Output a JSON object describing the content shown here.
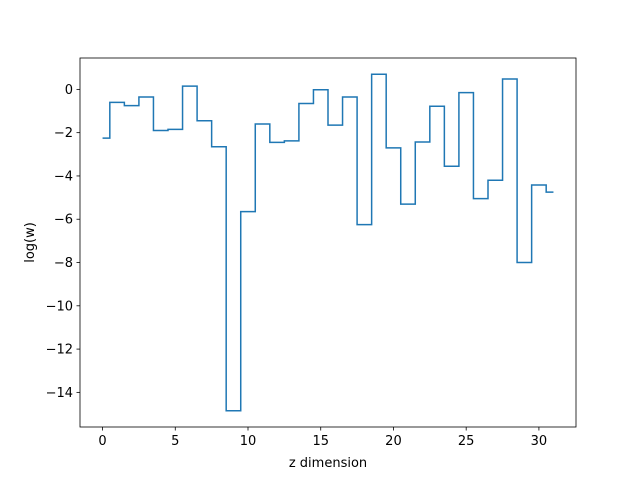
{
  "chart_data": {
    "type": "line",
    "drawstyle": "steps-mid",
    "title": "",
    "xlabel": "z dimension",
    "ylabel": "log(w)",
    "xlim": [
      -1.55,
      32.55
    ],
    "ylim": [
      -15.6,
      1.45
    ],
    "xticks": [
      0,
      5,
      10,
      15,
      20,
      25,
      30
    ],
    "yticks": [
      0,
      -2,
      -4,
      -6,
      -8,
      -10,
      -12,
      -14
    ],
    "xtick_labels": [
      "0",
      "5",
      "10",
      "15",
      "20",
      "25",
      "30"
    ],
    "ytick_labels": [
      "0",
      "−2",
      "−4",
      "−6",
      "−8",
      "−10",
      "−12",
      "−14"
    ],
    "grid": false,
    "line_color": "#1f77b4",
    "series": [
      {
        "x": [
          0,
          1,
          2,
          3,
          4,
          5,
          6,
          7,
          8,
          9,
          10,
          11,
          12,
          13,
          14,
          15,
          16,
          17,
          18,
          19,
          20,
          21,
          22,
          23,
          24,
          25,
          26,
          27,
          28,
          29,
          30,
          31
        ],
        "values": [
          -2.25,
          -0.6,
          -0.75,
          -0.35,
          -1.9,
          -1.85,
          0.15,
          -1.45,
          -2.65,
          -14.85,
          -5.65,
          -1.6,
          -2.45,
          -2.38,
          -0.65,
          -0.02,
          -1.65,
          -0.35,
          -6.25,
          0.7,
          -2.7,
          -5.3,
          -2.43,
          -0.78,
          -3.55,
          -0.15,
          -5.05,
          -4.2,
          0.48,
          -8.0,
          -4.42,
          -4.75
        ]
      }
    ]
  }
}
